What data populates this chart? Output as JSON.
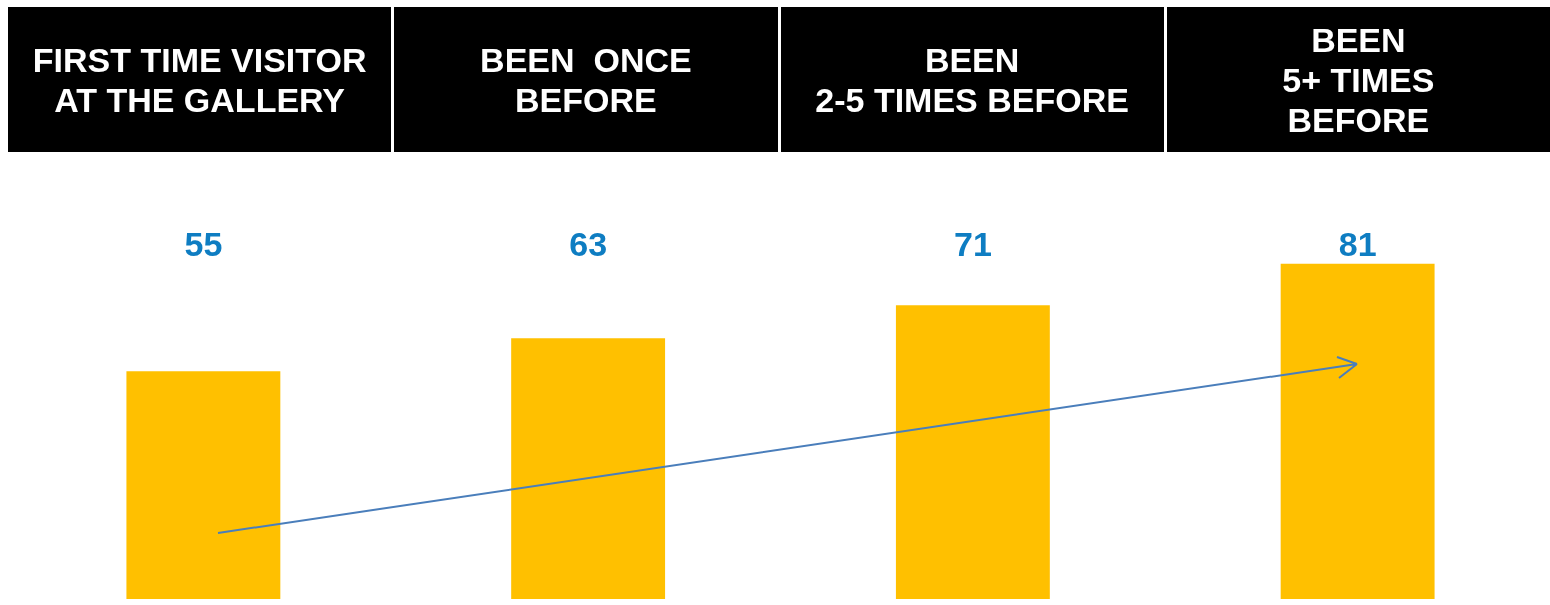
{
  "chart_data": {
    "type": "bar",
    "categories": [
      "FIRST TIME VISITOR\nAT THE GALLERY",
      "BEEN  ONCE\nBEFORE",
      "BEEN\n2-5 TIMES BEFORE",
      "BEEN\n5+ TIMES\nBEFORE"
    ],
    "values": [
      55,
      63,
      71,
      81
    ],
    "color": "#ffc000",
    "data_labels": true
  }
}
